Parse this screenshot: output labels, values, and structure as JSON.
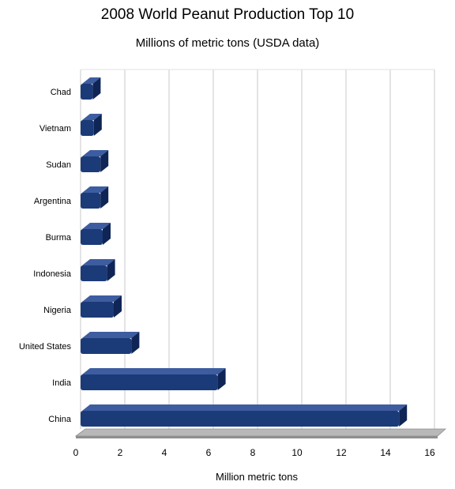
{
  "chart_data": {
    "type": "bar",
    "orientation": "horizontal",
    "title": "2008 World Peanut Production Top 10",
    "subtitle": "Millions of metric tons (USDA data)",
    "xlabel": "Million metric tons",
    "ylabel": "",
    "categories": [
      "China",
      "India",
      "United States",
      "Nigeria",
      "Indonesia",
      "Burma",
      "Argentina",
      "Sudan",
      "Vietnam",
      "Chad"
    ],
    "values": [
      14.4,
      6.2,
      2.3,
      1.5,
      1.2,
      1.0,
      0.9,
      0.9,
      0.6,
      0.55
    ],
    "xlim": [
      0,
      16
    ],
    "xticks": [
      0,
      2,
      4,
      6,
      8,
      10,
      12,
      14,
      16
    ],
    "grid": "vertical",
    "bar_color": "#1b3a78",
    "bar_top_color": "#3d5da0",
    "bar_side_color": "#0e2556",
    "floor_color": "#b8b8b8",
    "grid_color": "#c8c8c8"
  }
}
